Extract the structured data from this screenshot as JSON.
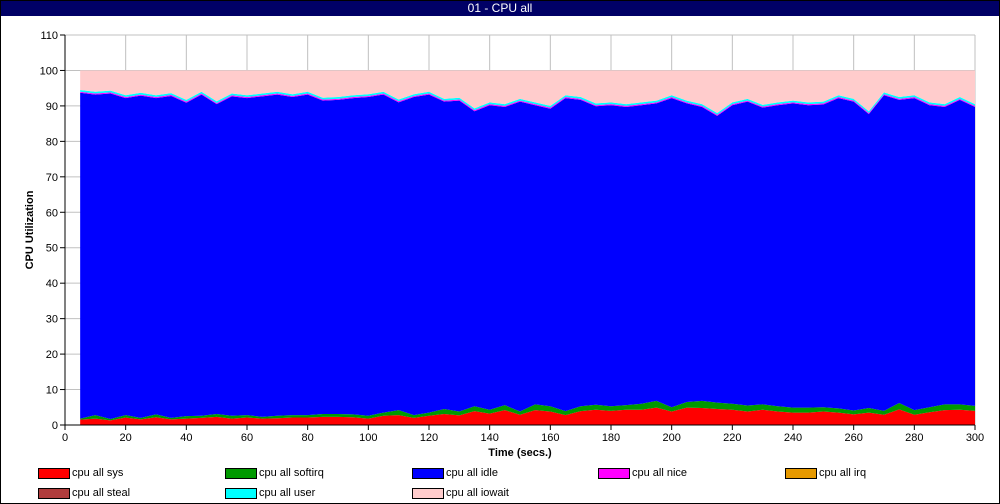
{
  "window": {
    "title": "01 - CPU all"
  },
  "chart_data": {
    "type": "area",
    "stacked": true,
    "title": "01 - CPU all",
    "xlabel": "Time (secs.)",
    "ylabel": "CPU Utilization",
    "xlim": [
      0,
      300
    ],
    "ylim": [
      0,
      110
    ],
    "xticks": [
      0,
      20,
      40,
      60,
      80,
      100,
      120,
      140,
      160,
      180,
      200,
      220,
      240,
      260,
      280,
      300
    ],
    "yticks": [
      0,
      10,
      20,
      30,
      40,
      50,
      60,
      70,
      80,
      90,
      100,
      110
    ],
    "grid": true,
    "legend_position": "bottom",
    "x": [
      5,
      10,
      15,
      20,
      25,
      30,
      35,
      40,
      45,
      50,
      55,
      60,
      65,
      70,
      75,
      80,
      85,
      90,
      95,
      100,
      105,
      110,
      115,
      120,
      125,
      130,
      135,
      140,
      145,
      150,
      155,
      160,
      165,
      170,
      175,
      180,
      185,
      190,
      195,
      200,
      205,
      210,
      215,
      220,
      225,
      230,
      235,
      240,
      245,
      250,
      255,
      260,
      265,
      270,
      275,
      280,
      285,
      290,
      295,
      300
    ],
    "series": [
      {
        "name": "cpu all sys",
        "color": "#ff0000",
        "values": [
          1.5,
          1.8,
          1.3,
          2.1,
          1.6,
          2.2,
          1.6,
          1.8,
          2.0,
          2.3,
          1.8,
          2.1,
          1.8,
          1.9,
          2.1,
          2.1,
          2.3,
          2.3,
          2.2,
          1.8,
          2.6,
          2.8,
          2.0,
          2.6,
          3.1,
          2.7,
          3.9,
          3.2,
          4.2,
          2.9,
          4.2,
          3.8,
          2.8,
          3.9,
          4.3,
          4.0,
          4.3,
          4.3,
          4.9,
          3.8,
          4.9,
          4.8,
          4.5,
          4.3,
          3.8,
          4.3,
          3.8,
          3.5,
          3.5,
          3.8,
          3.5,
          3.0,
          3.5,
          2.9,
          4.4,
          2.9,
          3.6,
          4.2,
          4.3,
          4.0
        ]
      },
      {
        "name": "cpu all softirq",
        "color": "#009900",
        "values": [
          0.3,
          1.0,
          0.4,
          0.7,
          0.4,
          0.8,
          0.4,
          0.7,
          0.6,
          0.8,
          0.8,
          0.7,
          0.5,
          0.7,
          0.7,
          0.7,
          0.8,
          0.8,
          0.8,
          0.8,
          0.9,
          1.4,
          0.8,
          0.9,
          1.4,
          1.1,
          1.4,
          1.1,
          1.4,
          0.9,
          1.6,
          1.5,
          1.1,
          1.4,
          1.4,
          1.3,
          1.3,
          1.7,
          1.9,
          1.2,
          1.6,
          2.0,
          1.8,
          1.7,
          1.7,
          1.5,
          1.5,
          1.4,
          1.4,
          1.2,
          1.2,
          1.1,
          1.3,
          1.1,
          1.8,
          1.3,
          1.4,
          1.6,
          1.5,
          1.4
        ]
      },
      {
        "name": "cpu all idle",
        "color": "#0000ff",
        "values": [
          91.9,
          90.4,
          91.8,
          89.4,
          90.9,
          89.2,
          90.8,
          88.4,
          90.6,
          87.4,
          90.1,
          89.4,
          90.4,
          90.6,
          89.7,
          90.4,
          88.4,
          88.6,
          89.2,
          89.9,
          89.7,
          86.8,
          89.7,
          89.7,
          86.7,
          87.7,
          83.2,
          85.9,
          84.1,
          87.4,
          84.4,
          83.9,
          88.3,
          86.4,
          84.2,
          84.9,
          84.1,
          84.2,
          83.9,
          87.2,
          84.2,
          82.9,
          80.9,
          84.2,
          85.7,
          83.7,
          84.9,
          85.8,
          85.3,
          85.4,
          87.5,
          87.1,
          82.9,
          89.0,
          85.5,
          88.0,
          85.2,
          83.9,
          85.9,
          84.3
        ]
      },
      {
        "name": "cpu all nice",
        "color": "#ff00ff",
        "values": [
          0.3,
          0.3,
          0.3,
          0.3,
          0.3,
          0.3,
          0.3,
          0.3,
          0.3,
          0.3,
          0.3,
          0.3,
          0.3,
          0.3,
          0.3,
          0.3,
          0.3,
          0.3,
          0.3,
          0.3,
          0.3,
          0.3,
          0.3,
          0.3,
          0.3,
          0.3,
          0.3,
          0.3,
          0.3,
          0.3,
          0.3,
          0.3,
          0.3,
          0.3,
          0.3,
          0.3,
          0.3,
          0.3,
          0.3,
          0.3,
          0.3,
          0.3,
          0.3,
          0.3,
          0.3,
          0.3,
          0.3,
          0.3,
          0.3,
          0.3,
          0.3,
          0.3,
          0.3,
          0.3,
          0.3,
          0.3,
          0.3,
          0.3,
          0.3,
          0.3
        ]
      },
      {
        "name": "cpu all irq",
        "color": "#e69900",
        "values": [
          0,
          0,
          0,
          0,
          0,
          0,
          0,
          0,
          0,
          0,
          0,
          0,
          0,
          0,
          0,
          0,
          0,
          0,
          0,
          0,
          0,
          0,
          0,
          0,
          0,
          0,
          0,
          0,
          0,
          0,
          0,
          0,
          0,
          0,
          0,
          0,
          0,
          0,
          0,
          0,
          0,
          0,
          0,
          0,
          0,
          0,
          0,
          0,
          0,
          0,
          0,
          0,
          0,
          0,
          0,
          0,
          0,
          0,
          0,
          0
        ]
      },
      {
        "name": "cpu all steal",
        "color": "#b03c3c",
        "values": [
          0,
          0,
          0,
          0,
          0,
          0,
          0,
          0,
          0,
          0,
          0,
          0,
          0,
          0,
          0,
          0,
          0,
          0,
          0,
          0,
          0,
          0,
          0,
          0,
          0,
          0,
          0,
          0,
          0,
          0,
          0,
          0,
          0,
          0,
          0,
          0,
          0,
          0,
          0,
          0,
          0,
          0,
          0,
          0,
          0,
          0,
          0,
          0,
          0,
          0,
          0,
          0,
          0,
          0,
          0,
          0,
          0,
          0,
          0,
          0
        ]
      },
      {
        "name": "cpu all user",
        "color": "#00ffff",
        "values": [
          0.5,
          0.5,
          0.5,
          0.5,
          0.5,
          0.5,
          0.5,
          0.5,
          0.5,
          0.5,
          0.5,
          0.5,
          0.5,
          0.5,
          0.5,
          0.5,
          0.5,
          0.5,
          0.5,
          0.5,
          0.5,
          0.5,
          0.5,
          0.5,
          0.5,
          0.5,
          0.5,
          0.5,
          0.5,
          0.5,
          0.5,
          0.5,
          0.5,
          0.5,
          0.5,
          0.5,
          0.5,
          0.5,
          0.5,
          0.5,
          0.5,
          0.5,
          0.5,
          0.5,
          0.5,
          0.5,
          0.5,
          0.5,
          0.5,
          0.5,
          0.5,
          0.5,
          0.5,
          0.5,
          0.5,
          0.5,
          0.5,
          0.5,
          0.5,
          0.5
        ]
      },
      {
        "name": "cpu all iowait",
        "color": "#ffcccc",
        "values": [
          5.5,
          6,
          5.7,
          7,
          6.3,
          7,
          6.4,
          8.3,
          6,
          8.7,
          6.5,
          7,
          6.5,
          6,
          6.7,
          6,
          7.7,
          7.5,
          7,
          6.7,
          6,
          8.2,
          6.7,
          6,
          8,
          7.7,
          10.7,
          9,
          9.5,
          8,
          9,
          10,
          7,
          7.5,
          9.3,
          9,
          9.5,
          9,
          8.5,
          7,
          8.5,
          9.5,
          12,
          9,
          8,
          9.7,
          9,
          8.5,
          9,
          8.8,
          7,
          8,
          11.5,
          6.2,
          7.5,
          7,
          9,
          9.5,
          7.5,
          9.5
        ]
      }
    ]
  }
}
